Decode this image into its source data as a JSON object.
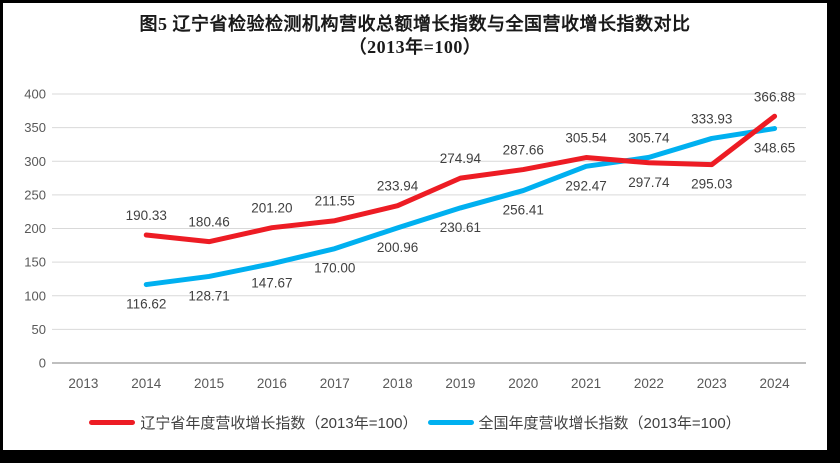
{
  "title": {
    "line1": "图5  辽宁省检验检测机构营收总额增长指数与全国营收增长指数对比",
    "line2": "（2013年=100）"
  },
  "colors": {
    "background": "#FFFFFF",
    "frame_border": "#000000",
    "grid": "#D9D9D9",
    "axis_line": "#BFBFBF",
    "tick_text": "#595959",
    "data_label_text": "#404040",
    "title_text": "#1A1A1A",
    "legend_text": "#404040",
    "liaoning_red": "#ED1C24",
    "national_blue": "#00B0F0"
  },
  "chart_data": {
    "type": "line",
    "title": "图5 辽宁省检验检测机构营收总额增长指数与全国营收增长指数对比（2013年=100）",
    "xlabel": "",
    "ylabel": "",
    "categories": [
      "2013",
      "2014",
      "2015",
      "2016",
      "2017",
      "2018",
      "2019",
      "2020",
      "2021",
      "2022",
      "2023",
      "2024"
    ],
    "series": [
      {
        "name": "辽宁省年度营收增长指数（2013年=100）",
        "color": "#ED1C24",
        "values": [
          null,
          190.33,
          180.46,
          201.2,
          211.55,
          233.94,
          274.94,
          287.66,
          305.54,
          297.74,
          295.03,
          366.88
        ],
        "label_positions": [
          null,
          "above",
          "above",
          "above",
          "above",
          "above",
          "above",
          "above",
          "above",
          "below",
          "below",
          "above"
        ]
      },
      {
        "name": "全国年度营收增长指数（2013年=100）",
        "color": "#00B0F0",
        "values": [
          null,
          116.62,
          128.71,
          147.67,
          170.0,
          200.96,
          230.61,
          256.41,
          292.47,
          305.74,
          333.93,
          348.65
        ],
        "label_positions": [
          null,
          "below",
          "below",
          "below",
          "below",
          "below",
          "below",
          "below",
          "below",
          "above",
          "above",
          "below"
        ]
      }
    ],
    "y_axis": {
      "min": 0,
      "max": 400,
      "step": 50,
      "ticks": [
        "0",
        "50",
        "100",
        "150",
        "200",
        "250",
        "300",
        "350",
        "400"
      ]
    },
    "ylim": [
      0,
      400
    ],
    "grid": true,
    "legend_position": "bottom",
    "value_format_decimals": 2
  }
}
